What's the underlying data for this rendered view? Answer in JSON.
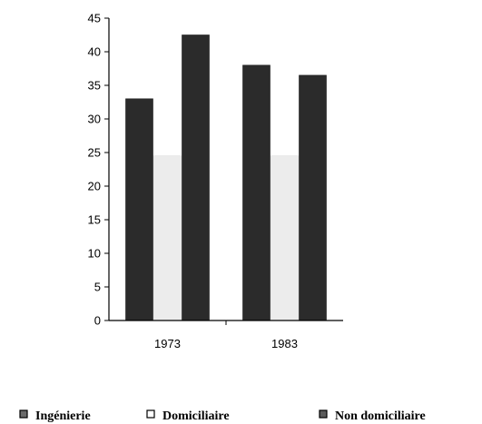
{
  "chart_data": {
    "type": "bar",
    "categories": [
      "1973",
      "1983"
    ],
    "series": [
      {
        "name": "Ingénierie",
        "values": [
          33,
          38
        ],
        "color": "#2b2b2b",
        "legend_marker": "#6a6a6a"
      },
      {
        "name": "Domiciliaire",
        "values": [
          24.5,
          24.5
        ],
        "color": "#ececec",
        "legend_marker": "#ffffff"
      },
      {
        "name": "Non domiciliaire",
        "values": [
          42.5,
          36.5
        ],
        "color": "#2b2b2b",
        "legend_marker": "#5a5a5a"
      }
    ],
    "ylim": [
      0,
      45
    ],
    "yticks": [
      "0",
      "5",
      "10",
      "15",
      "20",
      "25",
      "30",
      "35",
      "40",
      "45"
    ],
    "title": "",
    "xlabel": "",
    "ylabel": "",
    "grid": false,
    "legend_position": "bottom"
  }
}
